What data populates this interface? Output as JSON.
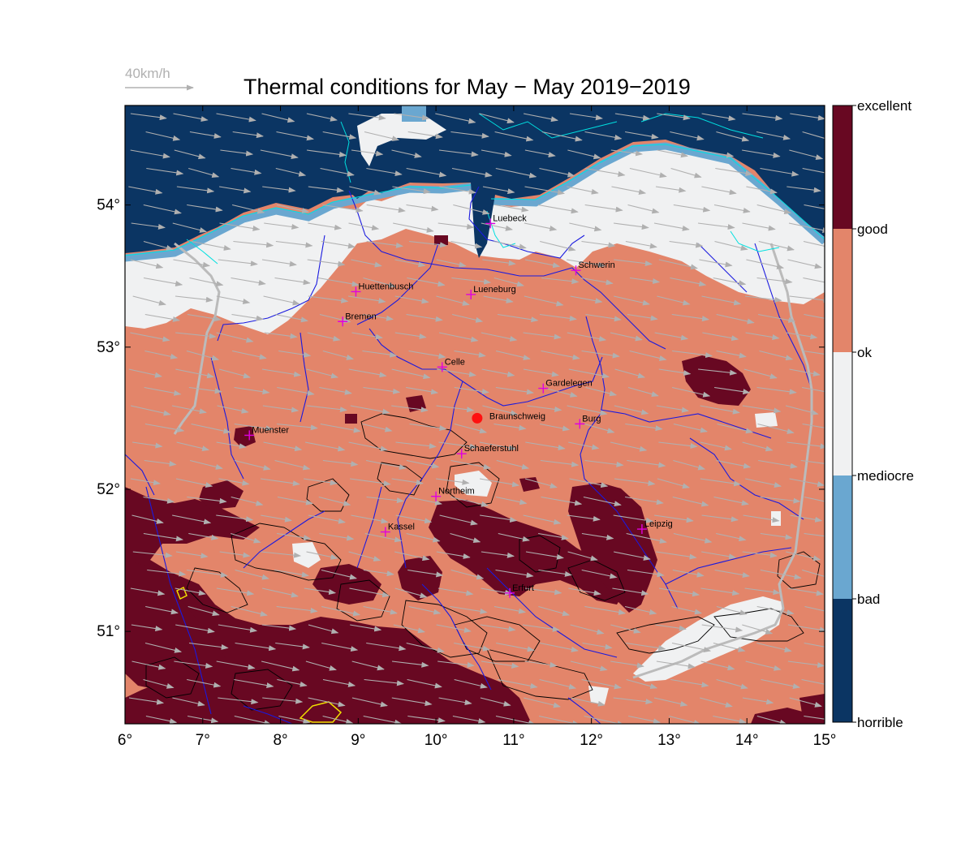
{
  "title": "Thermal conditions for May − May  2019−2019",
  "wind_reference": {
    "label": "40km/h",
    "color": "#b0b0b0"
  },
  "map": {
    "lon_range": [
      6,
      15
    ],
    "lat_range": [
      50.35,
      54.7
    ],
    "lon_ticks": [
      "6°",
      "7°",
      "8°",
      "9°",
      "10°",
      "11°",
      "12°",
      "13°",
      "14°",
      "15°"
    ],
    "lat_ticks": [
      "51°",
      "52°",
      "53°",
      "54°"
    ],
    "colors": {
      "sea": "#0b3563",
      "bad": "#6aa7d0",
      "mediocre": "#f0f1f2",
      "ok": "#e3856a",
      "excellent": "#680822",
      "coast": "#00e0e0",
      "river": "#1a1adf",
      "border": "#bbbbbb",
      "contour": "#000000",
      "city_marker": "#e000e0",
      "home_marker": "#ff1010",
      "arrow": "#b0b0b0"
    }
  },
  "cities": [
    {
      "name": "Luebeck",
      "lon": 10.7,
      "lat": 53.87
    },
    {
      "name": "Schwerin",
      "lon": 11.8,
      "lat": 53.54
    },
    {
      "name": "Huettenbusch",
      "lon": 8.97,
      "lat": 53.39
    },
    {
      "name": "Lueneburg",
      "lon": 10.45,
      "lat": 53.37
    },
    {
      "name": "Bremen",
      "lon": 8.8,
      "lat": 53.18
    },
    {
      "name": "Celle",
      "lon": 10.08,
      "lat": 52.86
    },
    {
      "name": "Gardelegen",
      "lon": 11.38,
      "lat": 52.71
    },
    {
      "name": "Burg",
      "lon": 11.85,
      "lat": 52.46
    },
    {
      "name": "Muenster",
      "lon": 7.6,
      "lat": 52.38
    },
    {
      "name": "Schaeferstuhl",
      "lon": 10.33,
      "lat": 52.25
    },
    {
      "name": "Northeim",
      "lon": 10.0,
      "lat": 51.95
    },
    {
      "name": "Kassel",
      "lon": 9.35,
      "lat": 51.7
    },
    {
      "name": "Leipzig",
      "lon": 12.65,
      "lat": 51.72
    },
    {
      "name": "Erfurt",
      "lon": 10.95,
      "lat": 51.27
    }
  ],
  "home": {
    "name": "Braunschweig",
    "lon": 10.53,
    "lat": 52.5
  },
  "colorbar": {
    "labels": [
      "excellent",
      "good",
      "ok",
      "mediocre",
      "bad",
      "horrible"
    ],
    "colors": [
      "#680822",
      "#e3856a",
      "#f0f1f2",
      "#6aa7d0",
      "#0b3563"
    ]
  }
}
